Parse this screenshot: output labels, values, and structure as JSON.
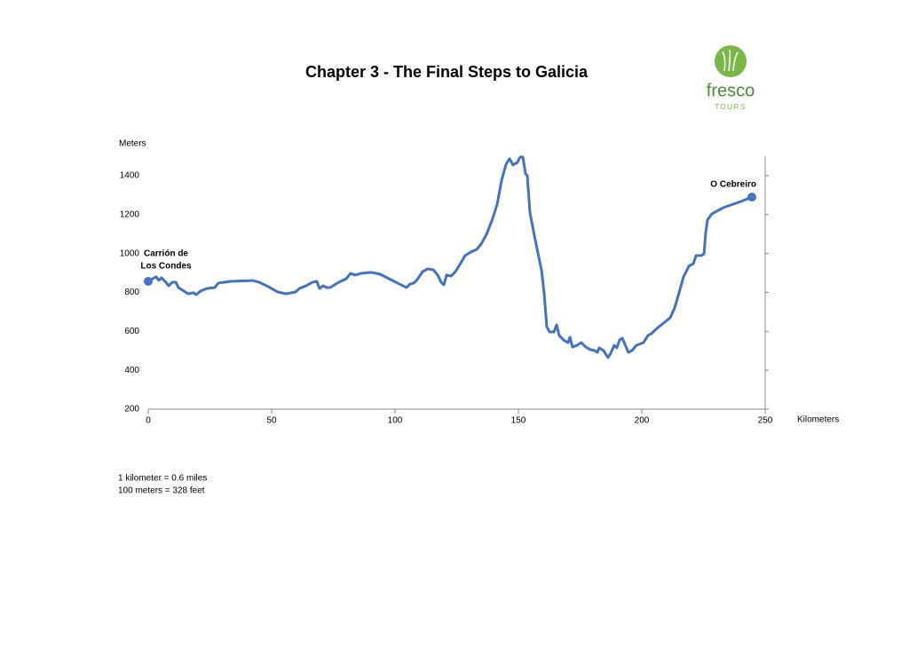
{
  "chart_data": {
    "type": "line",
    "title": "Chapter 3 - The Final Steps to Galicia",
    "y_label": "Meters",
    "x_label": "Kilometers",
    "xlim": [
      0,
      250
    ],
    "xticks": [
      0,
      50,
      100,
      150,
      200,
      250
    ],
    "ylim": [
      200,
      1500
    ],
    "yticks": [
      200,
      400,
      600,
      800,
      1000,
      1200,
      1400
    ],
    "color": "#4472c4",
    "x": [
      0,
      1.8,
      3.2,
      4.3,
      5.4,
      6.8,
      8.3,
      9.7,
      11.2,
      12.2,
      14.4,
      16.2,
      18.3,
      19.4,
      21.2,
      23.7,
      27,
      28.4,
      33.5,
      42.4,
      45,
      48.6,
      52.5,
      55.8,
      59.7,
      61.2,
      64,
      66.5,
      68.3,
      69.4,
      70.9,
      72.3,
      73.7,
      76.6,
      80.2,
      82,
      83.8,
      86.3,
      90.3,
      93.9,
      98.2,
      101.8,
      104.7,
      106.1,
      107.6,
      109,
      111.2,
      113.3,
      115.5,
      117.3,
      118.7,
      119.8,
      120.9,
      122.7,
      124.5,
      126.3,
      128.4,
      130.6,
      133.1,
      134.9,
      137.1,
      139.6,
      141.4,
      143.2,
      145,
      146.4,
      147.8,
      149.6,
      150.7,
      151.8,
      152.9,
      153.6,
      154.7,
      156.8,
      159.4,
      160.4,
      161.5,
      162.6,
      164.4,
      165.5,
      166.5,
      168.7,
      170.1,
      170.9,
      171.9,
      173.7,
      175.5,
      177.3,
      179.1,
      180.9,
      182,
      182.7,
      184.5,
      186.3,
      187.4,
      188.8,
      189.9,
      191,
      192.1,
      193.5,
      194.6,
      196,
      197.8,
      200.7,
      202.5,
      203.9,
      206.1,
      208.9,
      211.5,
      213.3,
      215.1,
      216.9,
      219.1,
      220.9,
      222,
      224.1,
      225.2,
      225.9,
      226.6,
      228.4,
      233.1,
      240.3,
      244.6
    ],
    "values": [
      857,
      870,
      880,
      862,
      875,
      857,
      834,
      852,
      852,
      825,
      807,
      793,
      798,
      788,
      807,
      820,
      825,
      848,
      857,
      861,
      852,
      830,
      802,
      793,
      802,
      820,
      834,
      852,
      857,
      820,
      834,
      825,
      825,
      848,
      870,
      898,
      889,
      898,
      903,
      894,
      866,
      843,
      825,
      843,
      848,
      866,
      907,
      921,
      916,
      889,
      852,
      839,
      889,
      884,
      907,
      944,
      989,
      1007,
      1021,
      1049,
      1099,
      1181,
      1254,
      1377,
      1459,
      1487,
      1455,
      1468,
      1496,
      1496,
      1409,
      1400,
      1208,
      1071,
      912,
      798,
      624,
      597,
      597,
      633,
      579,
      551,
      542,
      570,
      519,
      528,
      542,
      519,
      506,
      501,
      492,
      515,
      501,
      465,
      487,
      528,
      515,
      556,
      565,
      524,
      492,
      501,
      528,
      542,
      579,
      588,
      615,
      643,
      670,
      720,
      798,
      880,
      935,
      948,
      989,
      989,
      998,
      1108,
      1172,
      1204,
      1236,
      1268,
      1290
    ],
    "start_label": [
      "Carrión de",
      "Los Condes"
    ],
    "end_label": "O Cebreiro",
    "notes": [
      "1 kilometer = 0.6 miles",
      "100 meters = 328 feet"
    ]
  },
  "logo": {
    "name": "fresco",
    "subtitle": "TOURS"
  }
}
